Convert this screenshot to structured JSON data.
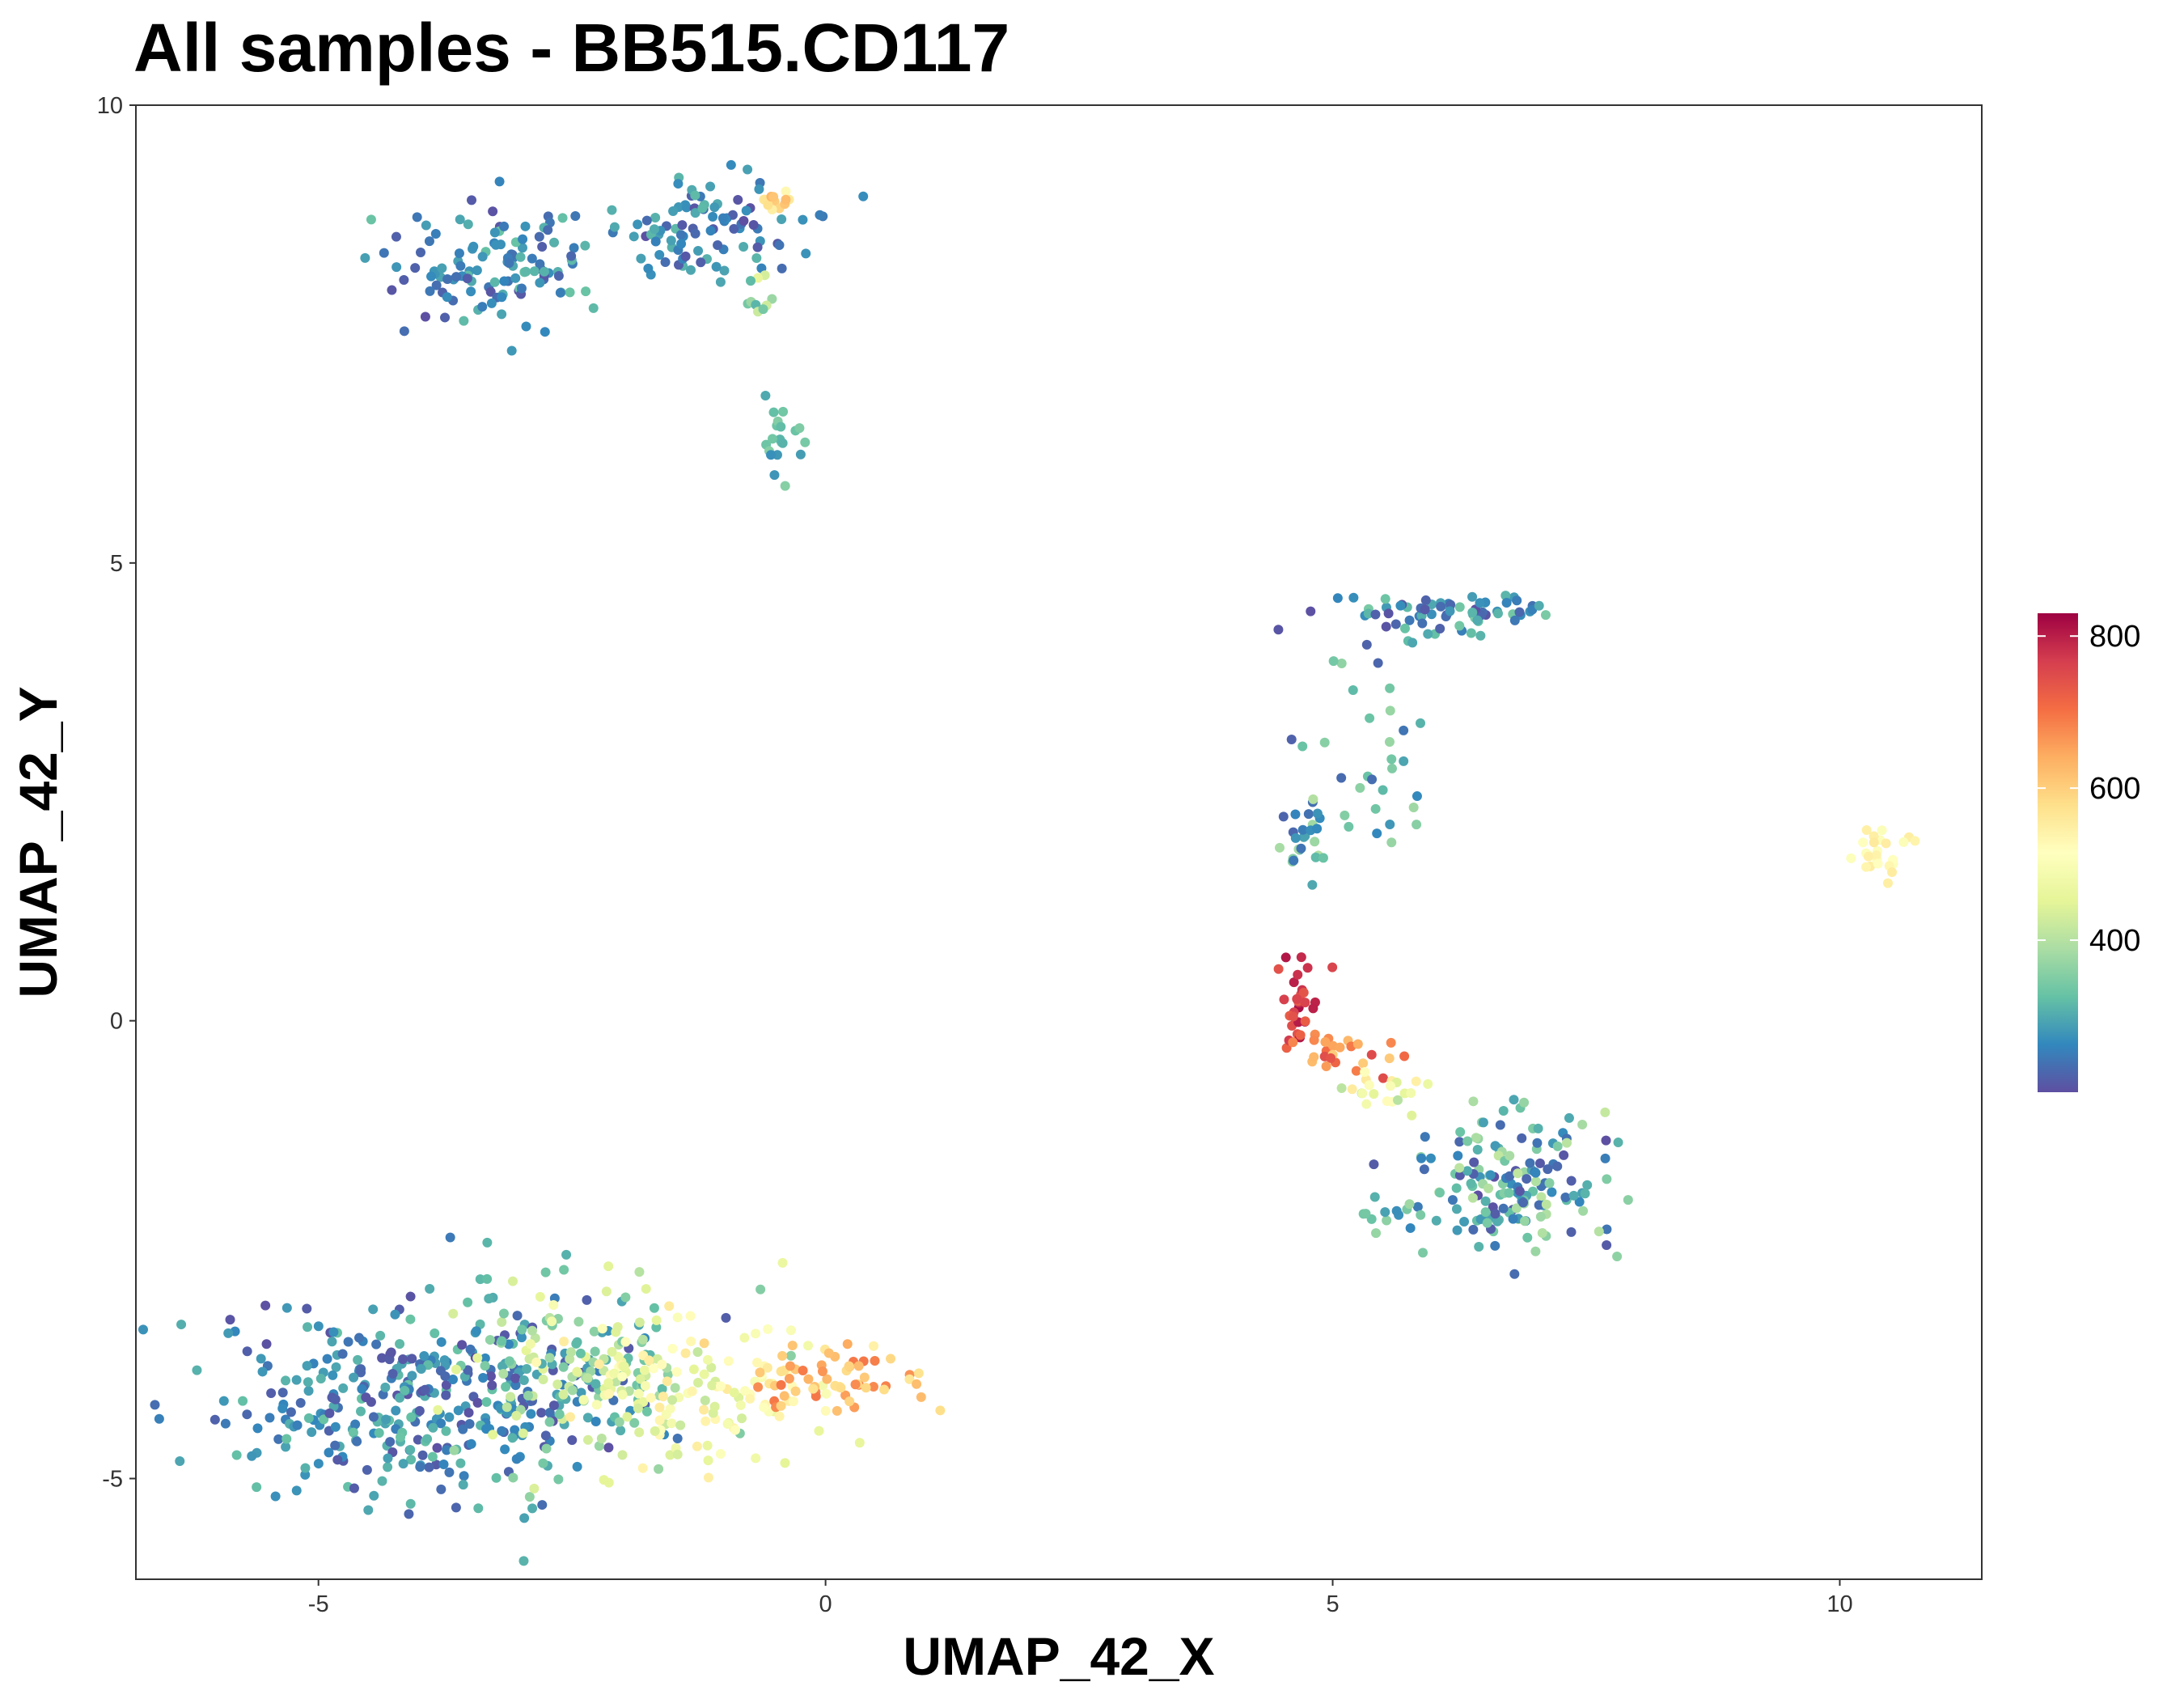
{
  "chart_data": {
    "type": "scatter",
    "title": "All samples - BB515.CD117",
    "xlabel": "UMAP_42_X",
    "ylabel": "UMAP_42_Y",
    "xlim": [
      -6.8,
      11.4
    ],
    "ylim": [
      -6.1,
      10.0
    ],
    "x_ticks": [
      -5,
      0,
      5,
      10
    ],
    "y_ticks": [
      -5,
      0,
      5,
      10
    ],
    "grid": false,
    "legend_position": "right",
    "colorbar": {
      "min": 200,
      "max": 830,
      "ticks": [
        400,
        600,
        800
      ],
      "palette": [
        "#5e4fa2",
        "#3288bd",
        "#66c2a5",
        "#abdda4",
        "#e6f598",
        "#ffffbf",
        "#fee08b",
        "#fdae61",
        "#f46d43",
        "#d53e4f",
        "#9e0142"
      ]
    },
    "clusters": [
      {
        "n": 120,
        "cx": -3.2,
        "cy": 8.2,
        "sx": 0.5,
        "sy": 0.38,
        "vmin": 200,
        "vmax": 330
      },
      {
        "n": 95,
        "cx": -1.2,
        "cy": 8.7,
        "sx": 0.45,
        "sy": 0.28,
        "vmin": 200,
        "vmax": 320
      },
      {
        "n": 12,
        "cx": -0.5,
        "cy": 8.95,
        "sx": 0.12,
        "sy": 0.06,
        "vmin": 520,
        "vmax": 640
      },
      {
        "n": 10,
        "cx": -0.65,
        "cy": 7.9,
        "sx": 0.08,
        "sy": 0.12,
        "vmin": 300,
        "vmax": 520
      },
      {
        "n": 20,
        "cx": -0.4,
        "cy": 6.3,
        "sx": 0.15,
        "sy": 0.25,
        "vmin": 260,
        "vmax": 360
      },
      {
        "n": 380,
        "cx": -3.9,
        "cy": -4.1,
        "sx": 1.0,
        "sy": 0.55,
        "vmin": 200,
        "vmax": 330
      },
      {
        "n": 140,
        "cx": -2.4,
        "cy": -3.9,
        "sx": 0.7,
        "sy": 0.55,
        "vmin": 300,
        "vmax": 460
      },
      {
        "n": 130,
        "cx": -1.2,
        "cy": -4.0,
        "sx": 0.7,
        "sy": 0.4,
        "vmin": 420,
        "vmax": 560
      },
      {
        "n": 60,
        "cx": 0.1,
        "cy": -3.9,
        "sx": 0.4,
        "sy": 0.2,
        "vmin": 560,
        "vmax": 700
      },
      {
        "n": 70,
        "cx": 6.1,
        "cy": 4.45,
        "sx": 0.55,
        "sy": 0.1,
        "vmin": 200,
        "vmax": 350
      },
      {
        "n": 35,
        "cx": 5.3,
        "cy": 2.9,
        "sx": 0.35,
        "sy": 0.75,
        "vmin": 220,
        "vmax": 380
      },
      {
        "n": 25,
        "cx": 4.75,
        "cy": 1.95,
        "sx": 0.12,
        "sy": 0.2,
        "vmin": 220,
        "vmax": 400
      },
      {
        "n": 25,
        "cx": 10.35,
        "cy": 1.8,
        "sx": 0.12,
        "sy": 0.15,
        "vmin": 500,
        "vmax": 560
      },
      {
        "n": 30,
        "cx": 4.65,
        "cy": 0.2,
        "sx": 0.1,
        "sy": 0.25,
        "vmin": 720,
        "vmax": 830
      },
      {
        "n": 25,
        "cx": 5.1,
        "cy": -0.35,
        "sx": 0.3,
        "sy": 0.12,
        "vmin": 600,
        "vmax": 760
      },
      {
        "n": 20,
        "cx": 5.6,
        "cy": -0.8,
        "sx": 0.25,
        "sy": 0.12,
        "vmin": 400,
        "vmax": 560
      },
      {
        "n": 160,
        "cx": 6.8,
        "cy": -1.75,
        "sx": 0.5,
        "sy": 0.4,
        "vmin": 200,
        "vmax": 420
      },
      {
        "n": 12,
        "cx": 5.55,
        "cy": -2.15,
        "sx": 0.15,
        "sy": 0.06,
        "vmin": 260,
        "vmax": 380
      }
    ]
  }
}
